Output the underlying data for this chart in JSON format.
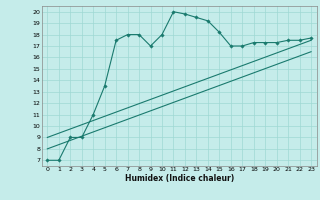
{
  "xlabel": "Humidex (Indice chaleur)",
  "bg_color": "#c5ecea",
  "grid_color": "#9fd8d4",
  "line_color": "#1a7a6e",
  "xlim": [
    -0.5,
    23.5
  ],
  "ylim": [
    6.5,
    20.5
  ],
  "xticks": [
    0,
    1,
    2,
    3,
    4,
    5,
    6,
    7,
    8,
    9,
    10,
    11,
    12,
    13,
    14,
    15,
    16,
    17,
    18,
    19,
    20,
    21,
    22,
    23
  ],
  "yticks": [
    7,
    8,
    9,
    10,
    11,
    12,
    13,
    14,
    15,
    16,
    17,
    18,
    19,
    20
  ],
  "curve1_x": [
    0,
    1,
    2,
    3,
    4,
    5,
    6,
    7,
    8,
    9,
    10,
    11,
    12,
    13,
    14,
    15,
    16,
    17,
    18,
    19,
    20,
    21,
    22,
    23
  ],
  "curve1_y": [
    7.0,
    7.0,
    9.0,
    9.0,
    11.0,
    13.5,
    17.5,
    18.0,
    18.0,
    17.0,
    18.0,
    20.0,
    19.8,
    19.5,
    19.2,
    18.2,
    17.0,
    17.0,
    17.3,
    17.3,
    17.3,
    17.5,
    17.5,
    17.7
  ],
  "line1_x": [
    0,
    23
  ],
  "line1_y": [
    8.0,
    16.5
  ],
  "line2_x": [
    0,
    23
  ],
  "line2_y": [
    9.0,
    17.5
  ]
}
